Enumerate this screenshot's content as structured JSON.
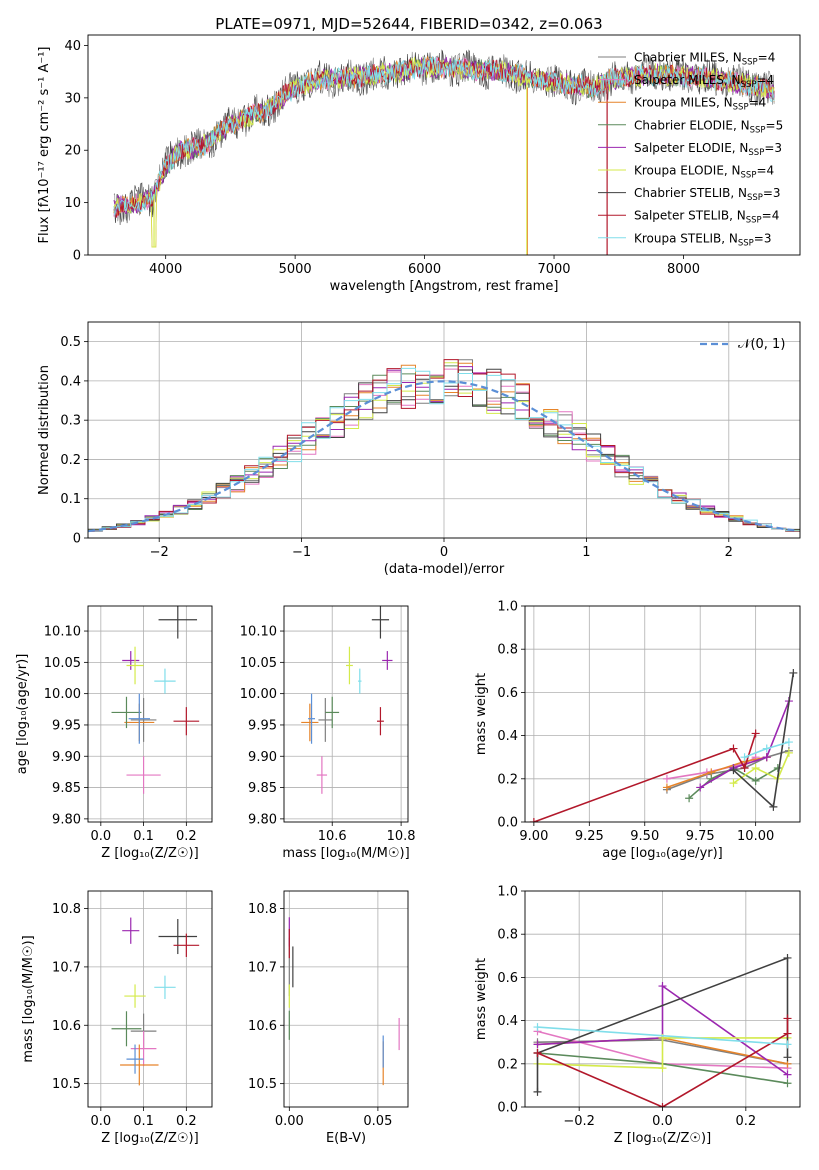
{
  "colors": {
    "chabrier_miles": "#7f7f7f",
    "salpeter_miles": "#e377c2",
    "kroupa_miles": "#e6842a",
    "chabrier_elodie": "#5b8a5b",
    "salpeter_elodie": "#9b27b0",
    "kroupa_elodie": "#d4ea4b",
    "chabrier_stelib": "#404040",
    "salpeter_stelib": "#b2182b",
    "kroupa_stelib": "#80deea",
    "normal": "#5b8fd6",
    "blue": "#4a7fd6"
  },
  "chart_data": [
    {
      "id": "spectrum",
      "type": "line",
      "title": "PLATE=0971, MJD=52644, FIBERID=0342, z=0.063",
      "xlabel": "wavelength [Angstrom, rest frame]",
      "ylabel": "Flux [fλ10⁻¹⁷ erg cm⁻² s⁻¹ A⁻¹]",
      "xlim": [
        3400,
        8900
      ],
      "ylim": [
        0,
        42
      ],
      "xticks": [
        4000,
        5000,
        6000,
        7000,
        8000
      ],
      "yticks": [
        0,
        10,
        20,
        30,
        40
      ],
      "grid": false,
      "legend_position": "right",
      "legend": [
        "Chabrier MILES, N_SSP=4",
        "Salpeter MILES, N_SSP=4",
        "Kroupa MILES, N_SSP=4",
        "Chabrier ELODIE, N_SSP=5",
        "Salpeter ELODIE, N_SSP=3",
        "Kroupa ELODIE, N_SSP=4",
        "Chabrier STELIB, N_SSP=3",
        "Salpeter STELIB, N_SSP=4",
        "Kroupa STELIB, N_SSP=3"
      ],
      "continuum": [
        [
          3600,
          9
        ],
        [
          3800,
          10
        ],
        [
          3900,
          11
        ],
        [
          4000,
          17
        ],
        [
          4100,
          20
        ],
        [
          4300,
          21
        ],
        [
          4500,
          25
        ],
        [
          4800,
          28
        ],
        [
          5000,
          32
        ],
        [
          5200,
          33.5
        ],
        [
          5500,
          34
        ],
        [
          5800,
          35
        ],
        [
          6000,
          36
        ],
        [
          6300,
          35.5
        ],
        [
          6600,
          35
        ],
        [
          7000,
          33
        ],
        [
          7300,
          32
        ],
        [
          7500,
          34
        ],
        [
          7800,
          34.5
        ],
        [
          8100,
          34
        ],
        [
          8400,
          33
        ],
        [
          8600,
          32
        ],
        [
          8700,
          31
        ]
      ],
      "spikes": [
        [
          3910,
          1.5
        ],
        [
          6790,
          0
        ],
        [
          7410,
          0
        ]
      ]
    },
    {
      "id": "residuals",
      "type": "step",
      "xlabel": "(data-model)/error",
      "ylabel": "Normed distribution",
      "xlim": [
        -2.5,
        2.5
      ],
      "ylim": [
        0,
        0.55
      ],
      "xticks": [
        -2,
        -1,
        0,
        1,
        2
      ],
      "yticks": [
        0,
        0.1,
        0.2,
        0.3,
        0.4,
        0.5
      ],
      "grid": true,
      "legend_position": "top-right",
      "normal_label": "𝒩(0, 1)",
      "bin_width": 0.1
    },
    {
      "id": "age_vs_z",
      "type": "errorbar",
      "xlabel": "Z [log₁₀(Z/Z☉)]",
      "ylabel": "age  [log₁₀(age/yr)]",
      "xlim": [
        -0.03,
        0.26
      ],
      "ylim": [
        9.795,
        10.14
      ],
      "xticks": [
        0,
        0.1,
        0.2
      ],
      "xticklabels": [
        "0.0",
        "0.1",
        "0.2"
      ],
      "yticks": [
        9.8,
        9.85,
        9.9,
        9.95,
        10.0,
        10.05,
        10.1
      ],
      "yticklabels": [
        "9.80",
        "9.85",
        "9.90",
        "9.95",
        "10.00",
        "10.05",
        "10.10"
      ],
      "grid": true,
      "points": [
        {
          "c": "chabrier_miles",
          "x": 0.1,
          "dx": 0.06,
          "y": 9.958,
          "dy": 0.07
        },
        {
          "c": "salpeter_miles",
          "x": 0.1,
          "dx": 0.08,
          "y": 9.87,
          "dy": 0.06
        },
        {
          "c": "kroupa_miles",
          "x": 0.09,
          "dx": 0.07,
          "y": 9.954,
          "dy": 0.06
        },
        {
          "c": "chabrier_elodie",
          "x": 0.06,
          "dx": 0.07,
          "y": 9.97,
          "dy": 0.05
        },
        {
          "c": "salpeter_elodie",
          "x": 0.07,
          "dx": 0.04,
          "y": 10.053,
          "dy": 0.03
        },
        {
          "c": "kroupa_elodie",
          "x": 0.08,
          "dx": 0.04,
          "y": 10.045,
          "dy": 0.06
        },
        {
          "c": "chabrier_stelib",
          "x": 0.18,
          "dx": 0.09,
          "y": 10.118,
          "dy": 0.06
        },
        {
          "c": "salpeter_stelib",
          "x": 0.2,
          "dx": 0.06,
          "y": 9.956,
          "dy": 0.045
        },
        {
          "c": "kroupa_stelib",
          "x": 0.15,
          "dx": 0.05,
          "y": 10.02,
          "dy": 0.04
        },
        {
          "c": "normal",
          "x": 0.09,
          "dx": 0.05,
          "y": 9.96,
          "dy": 0.08
        }
      ]
    },
    {
      "id": "age_vs_mass",
      "type": "errorbar",
      "xlabel": "mass [log₁₀(M/M☉)]",
      "ylabel": "",
      "xlim": [
        10.46,
        10.82
      ],
      "ylim": [
        9.795,
        10.14
      ],
      "xticks": [
        10.6,
        10.8
      ],
      "xticklabels": [
        "10.6",
        "10.8"
      ],
      "yticks": [
        9.8,
        9.85,
        9.9,
        9.95,
        10.0,
        10.05,
        10.1
      ],
      "yticklabels": [
        "9.80",
        "9.85",
        "9.90",
        "9.95",
        "10.00",
        "10.05",
        "10.10"
      ],
      "grid": true,
      "points": [
        {
          "c": "chabrier_miles",
          "x": 10.58,
          "dx": 0.04,
          "y": 9.958,
          "dy": 0.07
        },
        {
          "c": "salpeter_miles",
          "x": 10.57,
          "dx": 0.03,
          "y": 9.87,
          "dy": 0.06
        },
        {
          "c": "kroupa_miles",
          "x": 10.535,
          "dx": 0.05,
          "y": 9.954,
          "dy": 0.06
        },
        {
          "c": "chabrier_elodie",
          "x": 10.6,
          "dx": 0.04,
          "y": 9.97,
          "dy": 0.05
        },
        {
          "c": "salpeter_elodie",
          "x": 10.76,
          "dx": 0.03,
          "y": 10.053,
          "dy": 0.03
        },
        {
          "c": "kroupa_elodie",
          "x": 10.65,
          "dx": 0.02,
          "y": 10.045,
          "dy": 0.06
        },
        {
          "c": "chabrier_stelib",
          "x": 10.74,
          "dx": 0.05,
          "y": 10.118,
          "dy": 0.06
        },
        {
          "c": "salpeter_stelib",
          "x": 10.74,
          "dx": 0.02,
          "y": 9.956,
          "dy": 0.045
        },
        {
          "c": "kroupa_stelib",
          "x": 10.68,
          "dx": 0.01,
          "y": 10.02,
          "dy": 0.04
        },
        {
          "c": "normal",
          "x": 10.54,
          "dx": 0.02,
          "y": 9.96,
          "dy": 0.08
        }
      ]
    },
    {
      "id": "weight_vs_age",
      "type": "line",
      "xlabel": "age  [log₁₀(age/yr)]",
      "ylabel": "mass weight",
      "xlim": [
        8.96,
        10.2
      ],
      "ylim": [
        0,
        1
      ],
      "xticks": [
        9.0,
        9.25,
        9.5,
        9.75,
        10.0
      ],
      "xticklabels": [
        "9.00",
        "9.25",
        "9.50",
        "9.75",
        "10.00"
      ],
      "yticks": [
        0,
        0.2,
        0.4,
        0.6,
        0.8,
        1.0
      ],
      "yticklabels": [
        "0.0",
        "0.2",
        "0.4",
        "0.6",
        "0.8",
        "1.0"
      ],
      "grid": true,
      "series": [
        {
          "c": "chabrier_miles",
          "x": [
            9.6,
            9.78,
            9.95,
            10.05,
            10.15
          ],
          "y": [
            0.15,
            0.22,
            0.25,
            0.3,
            0.33
          ]
        },
        {
          "c": "salpeter_miles",
          "x": [
            9.6,
            9.78,
            9.95,
            10.0
          ],
          "y": [
            0.2,
            0.23,
            0.27,
            0.3
          ]
        },
        {
          "c": "kroupa_miles",
          "x": [
            9.6,
            9.8,
            9.95,
            10.05
          ],
          "y": [
            0.16,
            0.23,
            0.28,
            0.3
          ]
        },
        {
          "c": "chabrier_elodie",
          "x": [
            9.7,
            9.8,
            9.9,
            10.0,
            10.1
          ],
          "y": [
            0.11,
            0.2,
            0.25,
            0.19,
            0.25
          ]
        },
        {
          "c": "salpeter_elodie",
          "x": [
            9.75,
            9.9,
            10.05,
            10.15
          ],
          "y": [
            0.16,
            0.25,
            0.3,
            0.56
          ]
        },
        {
          "c": "kroupa_elodie",
          "x": [
            9.9,
            10.0,
            10.1,
            10.15
          ],
          "y": [
            0.18,
            0.25,
            0.2,
            0.32
          ]
        },
        {
          "c": "chabrier_stelib",
          "x": [
            9.9,
            10.08,
            10.17
          ],
          "y": [
            0.24,
            0.07,
            0.69
          ]
        },
        {
          "c": "salpeter_stelib",
          "x": [
            9.0,
            9.9,
            9.95,
            10.0
          ],
          "y": [
            0.0,
            0.34,
            0.25,
            0.41
          ]
        },
        {
          "c": "kroupa_stelib",
          "x": [
            9.95,
            10.05,
            10.15
          ],
          "y": [
            0.3,
            0.34,
            0.37
          ]
        }
      ]
    },
    {
      "id": "mass_vs_z",
      "type": "errorbar",
      "xlabel": "Z [log₁₀(Z/Z☉)]",
      "ylabel": "mass [log₁₀(M/M☉)]",
      "xlim": [
        -0.03,
        0.26
      ],
      "ylim": [
        10.46,
        10.83
      ],
      "xticks": [
        0,
        0.1,
        0.2
      ],
      "xticklabels": [
        "0.0",
        "0.1",
        "0.2"
      ],
      "yticks": [
        10.5,
        10.6,
        10.7,
        10.8
      ],
      "yticklabels": [
        "10.5",
        "10.6",
        "10.7",
        "10.8"
      ],
      "grid": true,
      "points": [
        {
          "c": "chabrier_miles",
          "x": 0.1,
          "dx": 0.06,
          "y": 10.59,
          "dy": 0.06
        },
        {
          "c": "salpeter_miles",
          "x": 0.1,
          "dx": 0.06,
          "y": 10.56,
          "dy": 0.06
        },
        {
          "c": "kroupa_miles",
          "x": 0.09,
          "dx": 0.09,
          "y": 10.532,
          "dy": 0.07
        },
        {
          "c": "chabrier_elodie",
          "x": 0.06,
          "dx": 0.07,
          "y": 10.594,
          "dy": 0.06
        },
        {
          "c": "salpeter_elodie",
          "x": 0.07,
          "dx": 0.04,
          "y": 10.762,
          "dy": 0.045
        },
        {
          "c": "kroupa_elodie",
          "x": 0.08,
          "dx": 0.05,
          "y": 10.65,
          "dy": 0.04
        },
        {
          "c": "chabrier_stelib",
          "x": 0.18,
          "dx": 0.09,
          "y": 10.752,
          "dy": 0.06
        },
        {
          "c": "salpeter_stelib",
          "x": 0.2,
          "dx": 0.06,
          "y": 10.737,
          "dy": 0.04
        },
        {
          "c": "kroupa_stelib",
          "x": 0.15,
          "dx": 0.05,
          "y": 10.665,
          "dy": 0.04
        },
        {
          "c": "normal",
          "x": 0.08,
          "dx": 0.04,
          "y": 10.542,
          "dy": 0.05
        }
      ]
    },
    {
      "id": "mass_vs_ebv",
      "type": "errorbar",
      "xlabel": "E(B-V)",
      "ylabel": "",
      "xlim": [
        -0.003,
        0.067
      ],
      "ylim": [
        10.46,
        10.83
      ],
      "xticks": [
        0,
        0.05
      ],
      "xticklabels": [
        "0.00",
        "0.05"
      ],
      "yticks": [
        10.5,
        10.6,
        10.7,
        10.8
      ],
      "yticklabels": [
        "10.5",
        "10.6",
        "10.7",
        "10.8"
      ],
      "grid": true,
      "points": [
        {
          "c": "chabrier_miles",
          "x": 0.0,
          "dx": 0,
          "y": 10.7,
          "dy": 0.1
        },
        {
          "c": "salpeter_elodie",
          "x": 0.0,
          "dx": 0,
          "y": 10.76,
          "dy": 0.05
        },
        {
          "c": "chabrier_elodie",
          "x": 0.0,
          "dx": 0,
          "y": 10.6,
          "dy": 0.05
        },
        {
          "c": "kroupa_elodie",
          "x": 0.0,
          "dx": 0,
          "y": 10.65,
          "dy": 0.04
        },
        {
          "c": "salpeter_stelib",
          "x": 0.0,
          "dx": 0,
          "y": 10.74,
          "dy": 0.05
        },
        {
          "c": "chabrier_stelib",
          "x": 0.002,
          "dx": 0,
          "y": 10.7,
          "dy": 0.07
        },
        {
          "c": "kroupa_miles",
          "x": 0.053,
          "dx": 0,
          "y": 10.535,
          "dy": 0.075
        },
        {
          "c": "normal",
          "x": 0.053,
          "dx": 0,
          "y": 10.555,
          "dy": 0.055
        },
        {
          "c": "salpeter_miles",
          "x": 0.062,
          "dx": 0,
          "y": 10.585,
          "dy": 0.055
        }
      ]
    },
    {
      "id": "weight_vs_z",
      "type": "line",
      "xlabel": "Z [log₁₀(Z/Z☉)]",
      "ylabel": "mass weight",
      "xlim": [
        -0.33,
        0.33
      ],
      "ylim": [
        0,
        1
      ],
      "xticks": [
        -0.2,
        0.0,
        0.2
      ],
      "xticklabels": [
        "−0.2",
        "0.0",
        "0.2"
      ],
      "yticks": [
        0,
        0.2,
        0.4,
        0.6,
        0.8,
        1.0
      ],
      "yticklabels": [
        "0.0",
        "0.2",
        "0.4",
        "0.6",
        "0.8",
        "1.0"
      ],
      "grid": true,
      "series": [
        {
          "c": "chabrier_miles",
          "x": [
            -0.3,
            0.0,
            0.3
          ],
          "y": [
            0.3,
            0.31,
            0.2
          ]
        },
        {
          "c": "salpeter_miles",
          "x": [
            -0.3,
            0.0,
            0.3
          ],
          "y": [
            0.35,
            0.2,
            0.18
          ]
        },
        {
          "c": "kroupa_miles",
          "x": [
            -0.3,
            0.0,
            0.3
          ],
          "y": [
            0.29,
            0.32,
            0.2
          ]
        },
        {
          "c": "chabrier_elodie",
          "x": [
            -0.3,
            0.0,
            0.3
          ],
          "y": [
            0.25,
            0.2,
            0.11
          ]
        },
        {
          "c": "salpeter_elodie",
          "x": [
            -0.3,
            0.0,
            0.0,
            0.3
          ],
          "y": [
            0.29,
            0.32,
            0.56,
            0.15
          ]
        },
        {
          "c": "kroupa_elodie",
          "x": [
            -0.3,
            0.0,
            0.0,
            0.3
          ],
          "y": [
            0.2,
            0.18,
            0.32,
            0.32
          ]
        },
        {
          "c": "chabrier_stelib",
          "x": [
            -0.3,
            -0.3,
            0.3,
            0.3
          ],
          "y": [
            0.07,
            0.25,
            0.69,
            0.23
          ]
        },
        {
          "c": "salpeter_stelib",
          "x": [
            -0.3,
            0.0,
            0.3,
            0.3
          ],
          "y": [
            0.25,
            0.0,
            0.34,
            0.41
          ]
        },
        {
          "c": "kroupa_stelib",
          "x": [
            -0.3,
            0.3
          ],
          "y": [
            0.37,
            0.29
          ]
        }
      ]
    }
  ]
}
